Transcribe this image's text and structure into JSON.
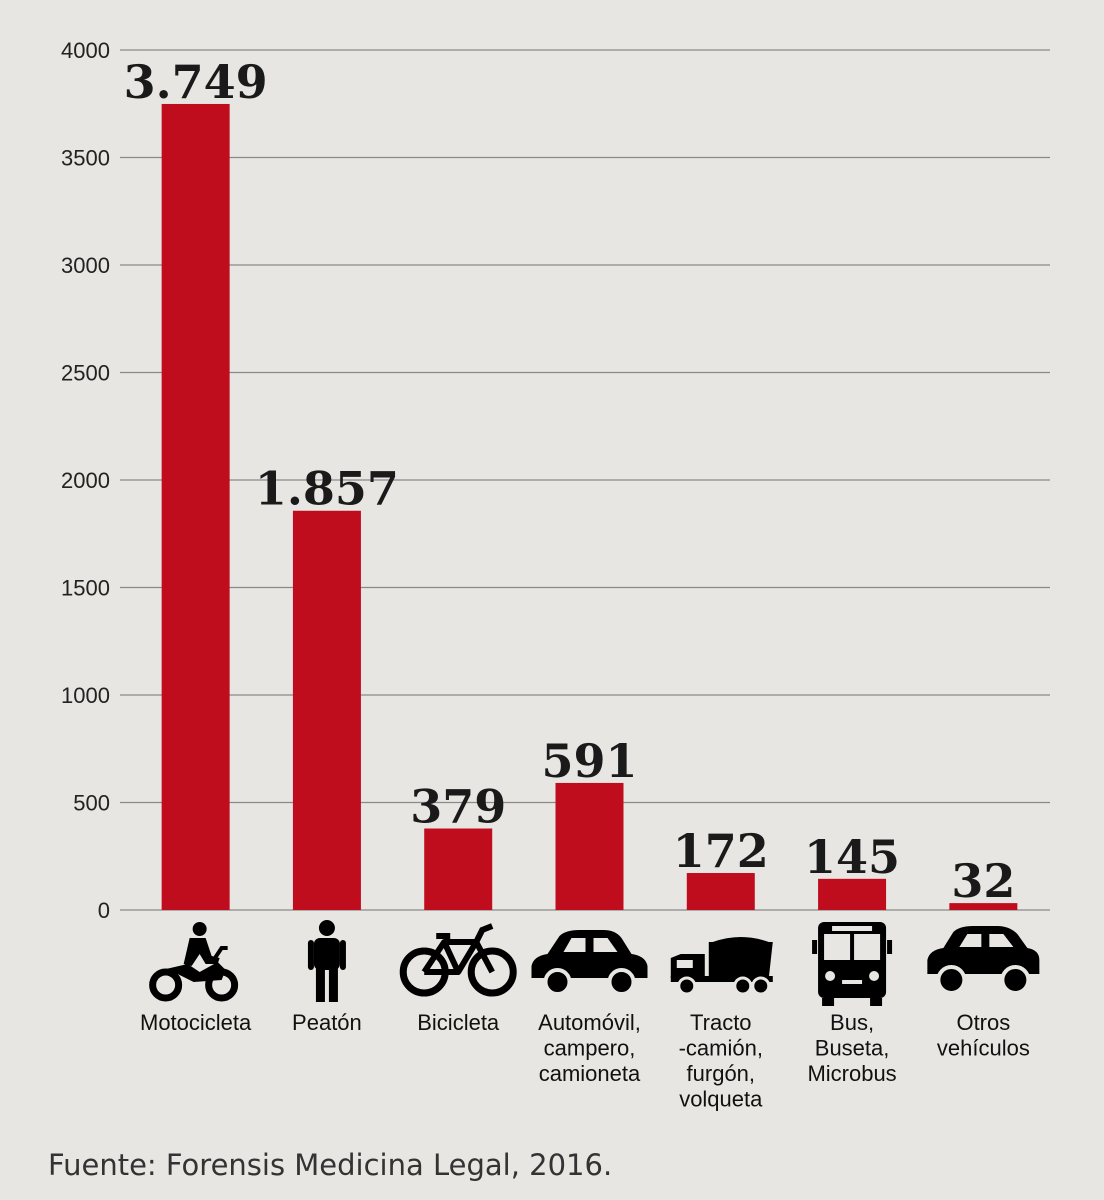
{
  "chart_data": {
    "type": "bar",
    "categories": [
      [
        "Motocicleta"
      ],
      [
        "Peatón"
      ],
      [
        "Bicicleta"
      ],
      [
        "Automóvil,",
        "campero,",
        "camioneta"
      ],
      [
        "Tracto",
        "-camión,",
        "furgón,",
        "volqueta"
      ],
      [
        "Bus,",
        "Buseta,",
        "Microbus"
      ],
      [
        "Otros",
        "vehículos"
      ]
    ],
    "values": [
      3749,
      1857,
      379,
      591,
      172,
      145,
      32
    ],
    "value_labels": [
      "3.749",
      "1.857",
      "379",
      "591",
      "172",
      "145",
      "32"
    ],
    "icons": [
      "motorcycle-icon",
      "pedestrian-icon",
      "bicycle-icon",
      "car-icon",
      "truck-icon",
      "bus-icon",
      "other-vehicle-icon"
    ],
    "ylim": [
      0,
      4000
    ],
    "yticks": [
      0,
      500,
      1000,
      1500,
      2000,
      2500,
      3000,
      3500,
      4000
    ],
    "grid": true,
    "bar_color": "#c00d1e",
    "title": "",
    "xlabel": "",
    "ylabel": ""
  },
  "source": "Fuente: Forensis Medicina Legal,  2016."
}
